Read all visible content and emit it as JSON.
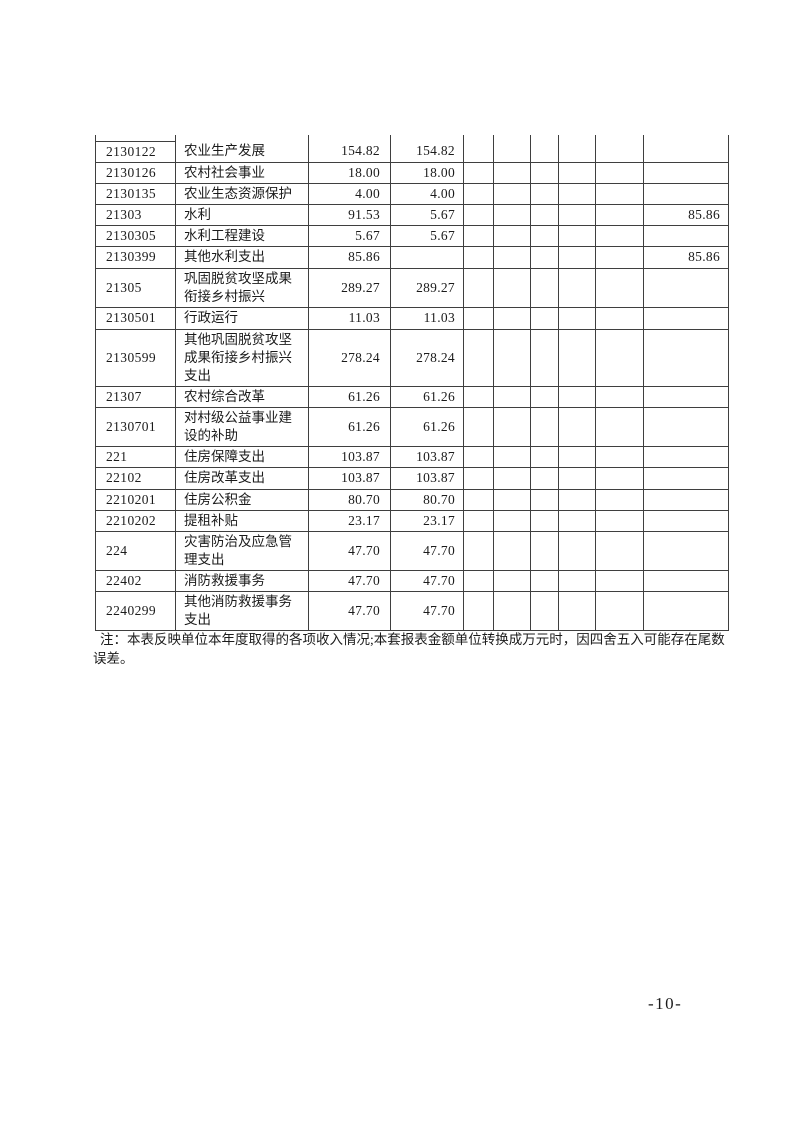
{
  "page": {
    "note": "注：本表反映单位本年度取得的各项收入情况;本套报表金额单位转换成万元时，因四舍五入可能存在尾数误差。",
    "page_number": "-10-"
  },
  "table": {
    "rows": [
      {
        "code": "2130122",
        "name": "农业生产发展",
        "amount1": "154.82",
        "amount2": "154.82",
        "amount3": ""
      },
      {
        "code": "2130126",
        "name": "农村社会事业",
        "amount1": "18.00",
        "amount2": "18.00",
        "amount3": ""
      },
      {
        "code": "2130135",
        "name": "农业生态资源保护",
        "amount1": "4.00",
        "amount2": "4.00",
        "amount3": ""
      },
      {
        "code": "21303",
        "name": "水利",
        "amount1": "91.53",
        "amount2": "5.67",
        "amount3": "85.86"
      },
      {
        "code": "2130305",
        "name": "水利工程建设",
        "amount1": "5.67",
        "amount2": "5.67",
        "amount3": ""
      },
      {
        "code": "2130399",
        "name": "其他水利支出",
        "amount1": "85.86",
        "amount2": "",
        "amount3": "85.86"
      },
      {
        "code": "21305",
        "name": "巩固脱贫攻坚成果衔接乡村振兴",
        "amount1": "289.27",
        "amount2": "289.27",
        "amount3": ""
      },
      {
        "code": "2130501",
        "name": "行政运行",
        "amount1": "11.03",
        "amount2": "11.03",
        "amount3": ""
      },
      {
        "code": "2130599",
        "name": "其他巩固脱贫攻坚成果衔接乡村振兴支出",
        "amount1": "278.24",
        "amount2": "278.24",
        "amount3": ""
      },
      {
        "code": "21307",
        "name": "农村综合改革",
        "amount1": "61.26",
        "amount2": "61.26",
        "amount3": ""
      },
      {
        "code": "2130701",
        "name": "对村级公益事业建设的补助",
        "amount1": "61.26",
        "amount2": "61.26",
        "amount3": ""
      },
      {
        "code": "221",
        "name": "住房保障支出",
        "amount1": "103.87",
        "amount2": "103.87",
        "amount3": ""
      },
      {
        "code": "22102",
        "name": "住房改革支出",
        "amount1": "103.87",
        "amount2": "103.87",
        "amount3": ""
      },
      {
        "code": "2210201",
        "name": "住房公积金",
        "amount1": "80.70",
        "amount2": "80.70",
        "amount3": ""
      },
      {
        "code": "2210202",
        "name": "提租补贴",
        "amount1": "23.17",
        "amount2": "23.17",
        "amount3": ""
      },
      {
        "code": "224",
        "name": "灾害防治及应急管理支出",
        "amount1": "47.70",
        "amount2": "47.70",
        "amount3": ""
      },
      {
        "code": "22402",
        "name": "消防救援事务",
        "amount1": "47.70",
        "amount2": "47.70",
        "amount3": ""
      },
      {
        "code": "2240299",
        "name": "其他消防救援事务支出",
        "amount1": "47.70",
        "amount2": "47.70",
        "amount3": ""
      }
    ]
  }
}
